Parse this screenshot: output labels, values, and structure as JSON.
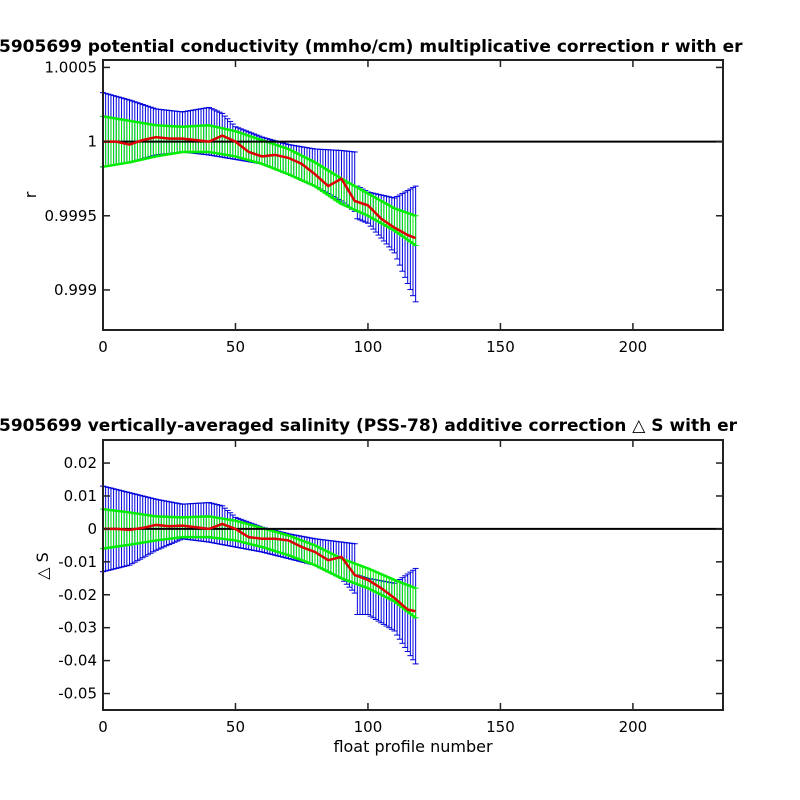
{
  "chart_data": [
    {
      "type": "line",
      "title": "5905699 potential conductivity (mmho/cm) multiplicative correction r with er",
      "xlabel": "",
      "ylabel": "r",
      "xlim": [
        0,
        234
      ],
      "ylim": [
        0.99873,
        1.00055
      ],
      "xticks": [
        0,
        50,
        100,
        150,
        200
      ],
      "xtick_labels": [
        "0",
        "50",
        "100",
        "150",
        "200"
      ],
      "yticks": [
        0.999,
        0.9995,
        1,
        1.0005
      ],
      "ytick_labels": [
        "0.999",
        "0.9995",
        "1",
        "1.0005"
      ],
      "grid": false,
      "reference_line": {
        "y": 1,
        "color": "#000000"
      },
      "colors": {
        "fit": "#dd0000",
        "fit_error": "#00ee00",
        "total_error": "#0000dd"
      },
      "series": [
        {
          "role": "fit",
          "x": [
            0,
            5,
            10,
            15,
            20,
            25,
            30,
            35,
            40,
            45,
            50,
            55,
            60,
            65,
            70,
            75,
            80,
            85,
            90,
            95,
            100,
            105,
            110,
            115,
            118
          ],
          "y": [
            1.0,
            1.0,
            0.99998,
            1.00001,
            1.00003,
            1.00002,
            1.00002,
            1.00001,
            1.0,
            1.00004,
            1.0,
            0.99993,
            0.9999,
            0.99991,
            0.99989,
            0.99985,
            0.99978,
            0.9997,
            0.99975,
            0.9996,
            0.99957,
            0.99948,
            0.99942,
            0.99937,
            0.99935
          ]
        },
        {
          "role": "fit-error-upper",
          "x": [
            0,
            10,
            20,
            30,
            40,
            50,
            60,
            70,
            80,
            90,
            100,
            110,
            118
          ],
          "y": [
            1.00017,
            1.00014,
            1.00011,
            1.0001,
            1.00011,
            1.00007,
            1.00001,
            0.99995,
            0.99986,
            0.99975,
            0.99965,
            0.99955,
            0.9995
          ]
        },
        {
          "role": "fit-error-lower",
          "x": [
            0,
            10,
            20,
            30,
            40,
            50,
            60,
            70,
            80,
            90,
            100,
            110,
            118
          ],
          "y": [
            0.99983,
            0.99986,
            0.9999,
            0.99993,
            0.99993,
            0.9999,
            0.99985,
            0.99978,
            0.9997,
            0.99958,
            0.9995,
            0.9994,
            0.9993
          ]
        },
        {
          "role": "total-error-upper",
          "x": [
            0,
            10,
            20,
            30,
            40,
            45,
            50,
            60,
            70,
            80,
            90,
            95,
            96,
            100,
            110,
            118
          ],
          "y": [
            1.00033,
            1.00028,
            1.00022,
            1.0002,
            1.00023,
            1.00019,
            1.0001,
            1.00003,
            0.99998,
            0.99995,
            0.99994,
            0.99993,
            0.9997,
            0.99966,
            0.99962,
            0.9997
          ]
        },
        {
          "role": "total-error-lower",
          "x": [
            0,
            10,
            20,
            30,
            40,
            50,
            60,
            70,
            80,
            90,
            95,
            96,
            100,
            110,
            118
          ],
          "y": [
            0.99983,
            0.99986,
            0.99991,
            0.99993,
            0.99991,
            0.99988,
            0.99985,
            0.99978,
            0.9997,
            0.9996,
            0.99953,
            0.99948,
            0.99945,
            0.99925,
            0.99892
          ]
        }
      ]
    },
    {
      "type": "line",
      "title": "5905699 vertically-averaged salinity (PSS-78) additive correction △ S with er",
      "xlabel": "float profile number",
      "ylabel": "△ S",
      "xlim": [
        0,
        234
      ],
      "ylim": [
        -0.055,
        0.027
      ],
      "xticks": [
        0,
        50,
        100,
        150,
        200
      ],
      "xtick_labels": [
        "0",
        "50",
        "100",
        "150",
        "200"
      ],
      "yticks": [
        -0.05,
        -0.04,
        -0.03,
        -0.02,
        -0.01,
        0,
        0.01,
        0.02
      ],
      "ytick_labels": [
        "-0.05",
        "-0.04",
        "-0.03",
        "-0.02",
        "-0.01",
        "0",
        "0.01",
        "0.02"
      ],
      "grid": false,
      "reference_line": {
        "y": 0,
        "color": "#000000"
      },
      "colors": {
        "fit": "#dd0000",
        "fit_error": "#00ee00",
        "total_error": "#0000dd"
      },
      "series": [
        {
          "role": "fit",
          "x": [
            0,
            5,
            10,
            15,
            20,
            25,
            30,
            35,
            40,
            45,
            50,
            55,
            60,
            65,
            70,
            75,
            80,
            85,
            90,
            95,
            100,
            105,
            110,
            115,
            118
          ],
          "y": [
            0.0,
            0.0,
            -0.0003,
            0.0003,
            0.0012,
            0.0008,
            0.001,
            0.0005,
            0.0,
            0.0015,
            0.0,
            -0.0025,
            -0.003,
            -0.003,
            -0.0035,
            -0.0055,
            -0.007,
            -0.0095,
            -0.0085,
            -0.014,
            -0.0155,
            -0.018,
            -0.021,
            -0.0245,
            -0.025
          ]
        },
        {
          "role": "fit-error-upper",
          "x": [
            0,
            10,
            20,
            30,
            40,
            50,
            60,
            70,
            80,
            90,
            100,
            110,
            118
          ],
          "y": [
            0.006,
            0.005,
            0.0038,
            0.0035,
            0.0038,
            0.0025,
            0.0003,
            -0.002,
            -0.005,
            -0.009,
            -0.012,
            -0.0155,
            -0.018
          ]
        },
        {
          "role": "fit-error-lower",
          "x": [
            0,
            10,
            20,
            30,
            40,
            50,
            60,
            70,
            80,
            90,
            100,
            110,
            118
          ],
          "y": [
            -0.006,
            -0.0048,
            -0.0035,
            -0.0025,
            -0.0025,
            -0.0035,
            -0.0055,
            -0.008,
            -0.011,
            -0.015,
            -0.018,
            -0.022,
            -0.027
          ]
        },
        {
          "role": "total-error-upper",
          "x": [
            0,
            10,
            20,
            30,
            40,
            45,
            50,
            60,
            70,
            80,
            90,
            95,
            96,
            100,
            110,
            118
          ],
          "y": [
            0.013,
            0.011,
            0.009,
            0.0075,
            0.008,
            0.007,
            0.0035,
            0.0005,
            -0.0015,
            -0.003,
            -0.004,
            -0.0045,
            -0.014,
            -0.015,
            -0.0165,
            -0.012
          ]
        },
        {
          "role": "total-error-lower",
          "x": [
            0,
            10,
            20,
            30,
            40,
            50,
            60,
            70,
            80,
            90,
            95,
            96,
            100,
            110,
            118
          ],
          "y": [
            -0.013,
            -0.011,
            -0.0065,
            -0.003,
            -0.004,
            -0.0055,
            -0.007,
            -0.009,
            -0.011,
            -0.015,
            -0.0195,
            -0.026,
            -0.026,
            -0.031,
            -0.041
          ]
        }
      ]
    }
  ]
}
